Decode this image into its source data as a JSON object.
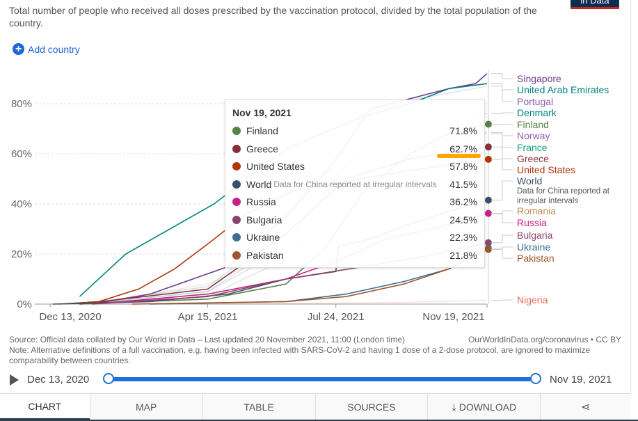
{
  "header": {
    "subtitle": "Total number of people who received all doses prescribed by the vaccination protocol, divided by the total population of the country.",
    "logo_text": "in Data",
    "add_country": "Add country"
  },
  "chart_data": {
    "type": "line",
    "title": "",
    "y_ticks": [
      "0%",
      "20%",
      "40%",
      "60%",
      "80%"
    ],
    "y_tick_values": [
      0,
      20,
      40,
      60,
      80
    ],
    "ylim": [
      0,
      93
    ],
    "x_ticks": [
      "Dec 13, 2020",
      "Apr 15, 2021",
      "Jul 24, 2021",
      "Nov 19, 2021"
    ],
    "x_tick_dates": [
      "2020-12-13",
      "2021-04-15",
      "2021-07-24",
      "2021-11-19"
    ],
    "xlim": [
      "2020-12-01",
      "2021-11-19"
    ],
    "grid": "horizontal dashed",
    "hover_date": "2021-11-19",
    "series": [
      {
        "name": "Singapore",
        "color": "#6d3e91",
        "highlight": true,
        "points": [
          [
            "2021-01-15",
            0
          ],
          [
            "2021-03-01",
            4
          ],
          [
            "2021-05-01",
            15
          ],
          [
            "2021-06-15",
            35
          ],
          [
            "2021-07-20",
            55
          ],
          [
            "2021-08-20",
            78
          ],
          [
            "2021-09-20",
            82
          ],
          [
            "2021-10-20",
            86
          ],
          [
            "2021-11-10",
            88
          ],
          [
            "2021-11-19",
            92
          ]
        ]
      },
      {
        "name": "United Arab Emirates",
        "color": "#00847e",
        "highlight": true,
        "points": [
          [
            "2021-01-05",
            3
          ],
          [
            "2021-02-10",
            20
          ],
          [
            "2021-04-20",
            40
          ],
          [
            "2021-06-15",
            62
          ],
          [
            "2021-08-15",
            75
          ],
          [
            "2021-09-20",
            80
          ],
          [
            "2021-10-20",
            86
          ],
          [
            "2021-11-19",
            88
          ]
        ]
      },
      {
        "name": "Portugal",
        "color": "#8a5fb0",
        "highlight": false,
        "points": [
          [
            "2021-01-10",
            0
          ],
          [
            "2021-04-15",
            5
          ],
          [
            "2021-06-15",
            25
          ],
          [
            "2021-08-01",
            55
          ],
          [
            "2021-09-05",
            80
          ],
          [
            "2021-11-19",
            87
          ]
        ]
      },
      {
        "name": "Denmark",
        "color": "#00847e",
        "highlight": false,
        "points": [
          [
            "2021-01-05",
            0
          ],
          [
            "2021-04-15",
            7
          ],
          [
            "2021-06-15",
            30
          ],
          [
            "2021-08-10",
            60
          ],
          [
            "2021-09-20",
            73
          ],
          [
            "2021-11-19",
            76
          ]
        ]
      },
      {
        "name": "Finland",
        "color": "#578145",
        "highlight": true,
        "points": [
          [
            "2021-01-05",
            0
          ],
          [
            "2021-04-15",
            2
          ],
          [
            "2021-06-15",
            8
          ],
          [
            "2021-07-15",
            22
          ],
          [
            "2021-08-15",
            45
          ],
          [
            "2021-09-20",
            60
          ],
          [
            "2021-10-20",
            68
          ],
          [
            "2021-11-19",
            71.8
          ]
        ]
      },
      {
        "name": "Norway",
        "color": "#9a5fb3",
        "highlight": false,
        "points": [
          [
            "2021-01-05",
            0
          ],
          [
            "2021-04-15",
            3
          ],
          [
            "2021-06-15",
            18
          ],
          [
            "2021-08-15",
            45
          ],
          [
            "2021-09-20",
            62
          ],
          [
            "2021-11-19",
            68
          ]
        ]
      },
      {
        "name": "France",
        "color": "#18a082",
        "highlight": false,
        "points": [
          [
            "2021-01-10",
            0
          ],
          [
            "2021-04-15",
            5
          ],
          [
            "2021-06-15",
            22
          ],
          [
            "2021-08-01",
            48
          ],
          [
            "2021-09-15",
            62
          ],
          [
            "2021-11-19",
            68.5
          ]
        ]
      },
      {
        "name": "Greece",
        "color": "#883039",
        "highlight": true,
        "points": [
          [
            "2021-01-05",
            0
          ],
          [
            "2021-04-15",
            6
          ],
          [
            "2021-06-15",
            28
          ],
          [
            "2021-08-01",
            50
          ],
          [
            "2021-09-20",
            58
          ],
          [
            "2021-11-19",
            62.7
          ]
        ]
      },
      {
        "name": "United States",
        "color": "#b13507",
        "highlight": true,
        "points": [
          [
            "2020-12-20",
            0
          ],
          [
            "2021-01-20",
            1
          ],
          [
            "2021-02-20",
            6
          ],
          [
            "2021-03-20",
            14
          ],
          [
            "2021-04-15",
            24
          ],
          [
            "2021-05-15",
            36
          ],
          [
            "2021-06-20",
            45
          ],
          [
            "2021-08-01",
            49
          ],
          [
            "2021-09-15",
            53
          ],
          [
            "2021-11-19",
            57.8
          ]
        ]
      },
      {
        "name": "World",
        "note": "Data for China reported at irregular intervals",
        "color": "#38506b",
        "highlight": true,
        "points": [
          [
            "2020-12-15",
            0
          ],
          [
            "2021-03-01",
            1
          ],
          [
            "2021-05-01",
            4
          ],
          [
            "2021-06-15",
            10
          ],
          [
            "2021-07-24",
            13
          ],
          [
            "2021-07-26",
            23
          ],
          [
            "2021-08-20",
            26
          ],
          [
            "2021-09-20",
            32
          ],
          [
            "2021-10-20",
            37
          ],
          [
            "2021-11-19",
            41.5
          ]
        ]
      },
      {
        "name": "Romania",
        "color": "#bc8e5a",
        "highlight": false,
        "points": [
          [
            "2021-01-15",
            0
          ],
          [
            "2021-04-15",
            8
          ],
          [
            "2021-06-15",
            22
          ],
          [
            "2021-08-15",
            26
          ],
          [
            "2021-10-15",
            30
          ],
          [
            "2021-11-19",
            36
          ]
        ]
      },
      {
        "name": "Russia",
        "color": "#c8218a",
        "highlight": true,
        "points": [
          [
            "2021-01-15",
            0
          ],
          [
            "2021-03-01",
            2
          ],
          [
            "2021-04-15",
            4
          ],
          [
            "2021-06-15",
            10
          ],
          [
            "2021-07-24",
            17
          ],
          [
            "2021-09-01",
            26
          ],
          [
            "2021-10-15",
            31
          ],
          [
            "2021-11-19",
            36.2
          ]
        ]
      },
      {
        "name": "Bulgaria",
        "color": "#8c4569",
        "highlight": true,
        "points": [
          [
            "2021-01-15",
            0
          ],
          [
            "2021-04-15",
            3
          ],
          [
            "2021-06-15",
            10
          ],
          [
            "2021-08-15",
            15
          ],
          [
            "2021-10-01",
            19
          ],
          [
            "2021-11-19",
            24.5
          ]
        ]
      },
      {
        "name": "Ukraine",
        "color": "#3c6e92",
        "highlight": true,
        "points": [
          [
            "2021-03-01",
            0
          ],
          [
            "2021-06-15",
            1
          ],
          [
            "2021-08-01",
            4
          ],
          [
            "2021-09-15",
            9
          ],
          [
            "2021-10-20",
            14
          ],
          [
            "2021-11-19",
            22.3
          ]
        ]
      },
      {
        "name": "Pakistan",
        "color": "#a2542e",
        "highlight": true,
        "points": [
          [
            "2021-02-15",
            0
          ],
          [
            "2021-06-15",
            1
          ],
          [
            "2021-08-01",
            3
          ],
          [
            "2021-09-15",
            8
          ],
          [
            "2021-10-20",
            14
          ],
          [
            "2021-11-19",
            21.8
          ]
        ]
      },
      {
        "name": "Nigeria",
        "color": "#e56e5a",
        "highlight": false,
        "points": [
          [
            "2021-03-15",
            0
          ],
          [
            "2021-06-15",
            0.2
          ],
          [
            "2021-09-15",
            0.7
          ],
          [
            "2021-11-19",
            1.5
          ]
        ]
      }
    ],
    "tooltip": {
      "date": "Nov 19, 2021",
      "rows": [
        {
          "name": "Finland",
          "value": "71.8%",
          "color": "#578145"
        },
        {
          "name": "Greece",
          "value": "62.7%",
          "color": "#883039"
        },
        {
          "name": "United States",
          "value": "57.8%",
          "color": "#b13507"
        },
        {
          "name": "World",
          "note": "Data for China reported at irregular intervals",
          "value": "41.5%",
          "color": "#38506b"
        },
        {
          "name": "Russia",
          "value": "36.2%",
          "color": "#c8218a"
        },
        {
          "name": "Bulgaria",
          "value": "24.5%",
          "color": "#8c4569"
        },
        {
          "name": "Ukraine",
          "value": "22.3%",
          "color": "#3c6e92"
        },
        {
          "name": "Pakistan",
          "value": "21.8%",
          "color": "#a2542e"
        }
      ]
    }
  },
  "footer": {
    "source": "Source: Official data collated by Our World in Data – Last updated 20 November 2021, 11:00 (London time)",
    "source_right": "OurWorldInData.org/coronavirus • CC BY",
    "note": "Note: Alternative definitions of a full vaccination, e.g. having been infected with SARS-CoV-2 and having 1 dose of a 2-dose protocol, are ignored to maximize comparability between countries."
  },
  "timeline": {
    "start": "Dec 13, 2020",
    "end": "Nov 19, 2021",
    "start_fraction": 0,
    "end_fraction": 1
  },
  "tabs": [
    {
      "label": "CHART",
      "active": true
    },
    {
      "label": "MAP"
    },
    {
      "label": "TABLE"
    },
    {
      "label": "SOURCES"
    },
    {
      "label": "DOWNLOAD",
      "icon": "download-icon"
    },
    {
      "label": "",
      "icon": "share-icon"
    }
  ]
}
